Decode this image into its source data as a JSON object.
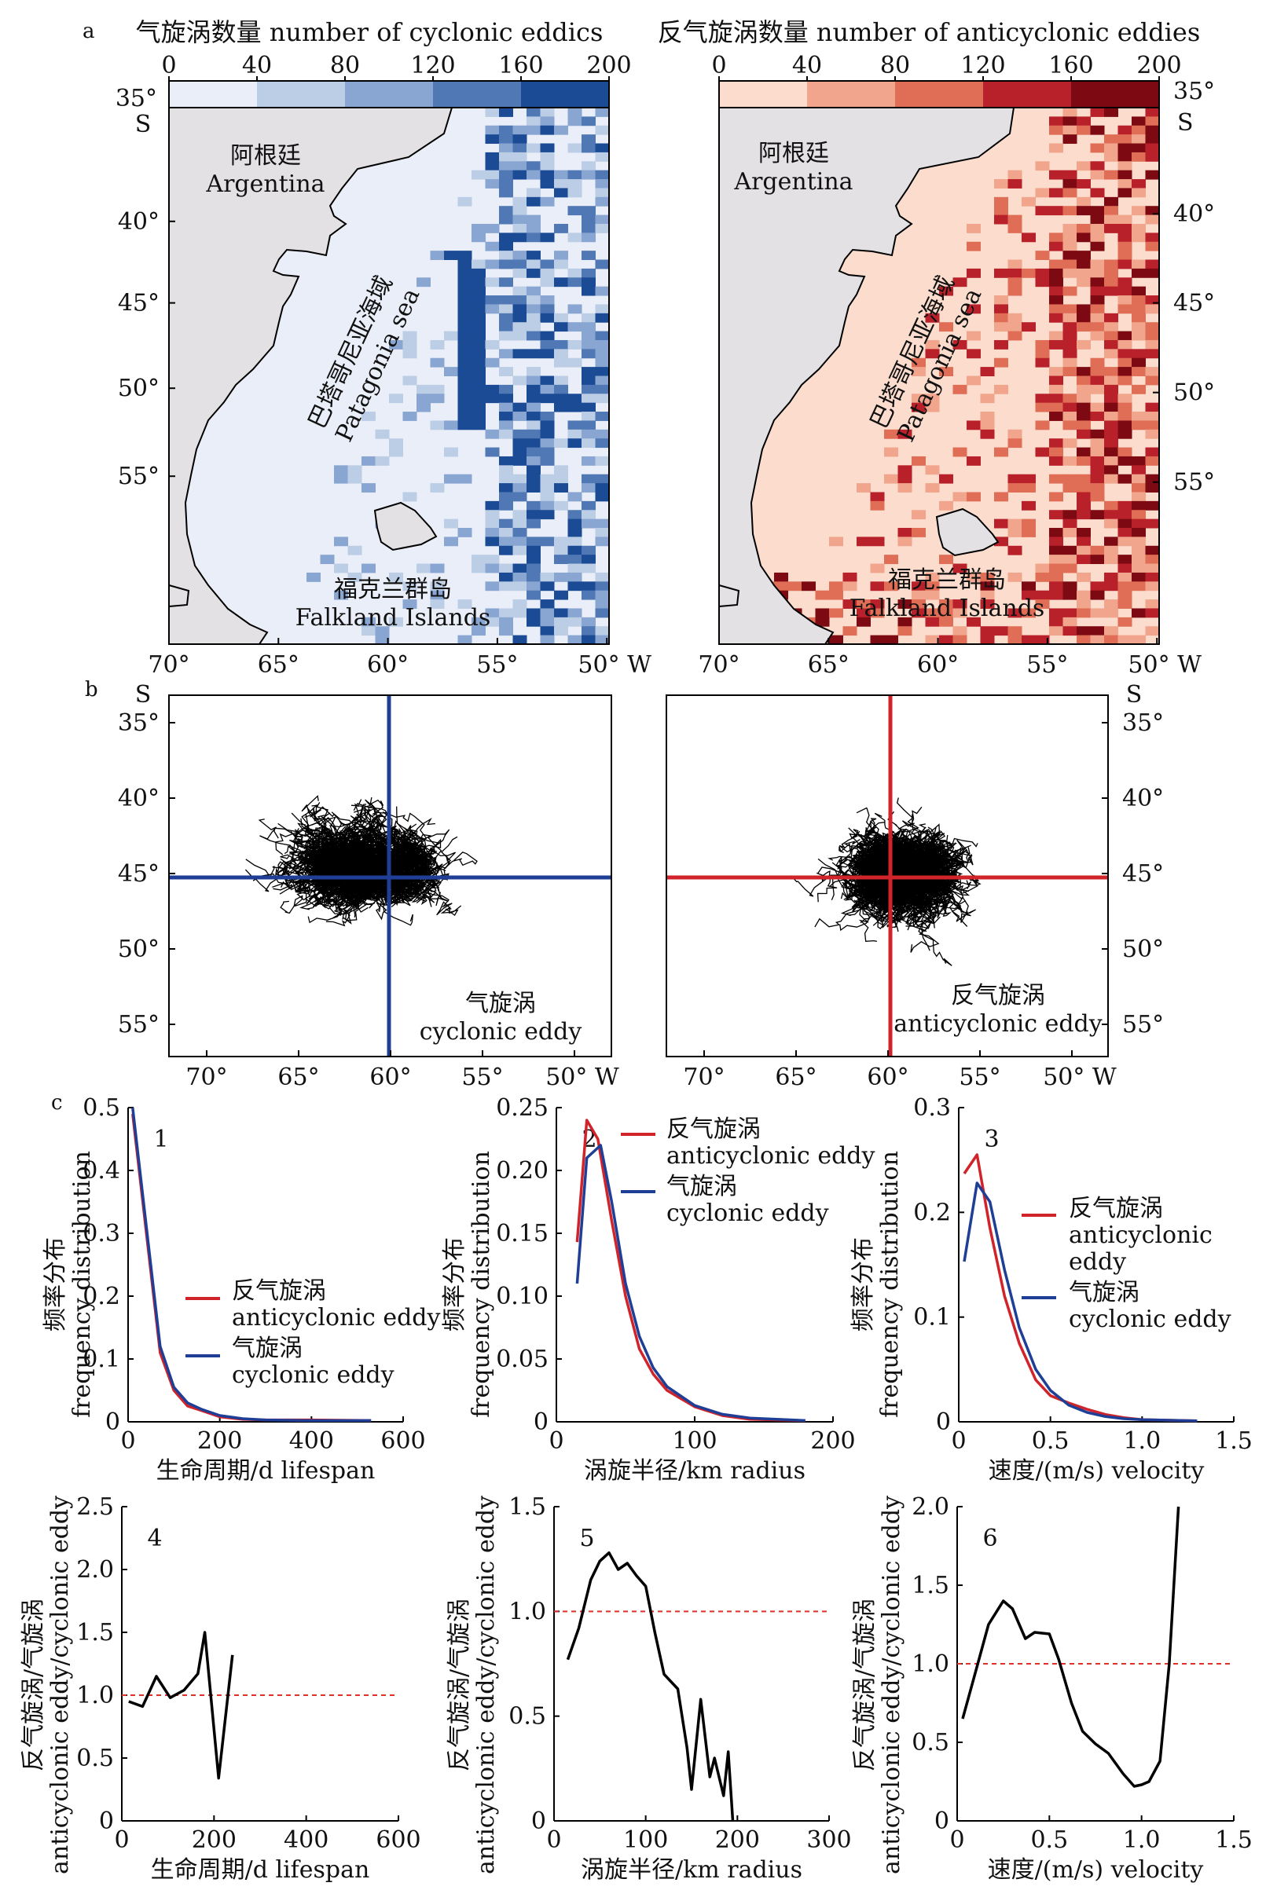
{
  "panel_letters": [
    "a",
    "b",
    "c"
  ],
  "colors": {
    "cyclonic": "#1f3f96",
    "anticyclonic": "#d1232a",
    "ratio": "#000000",
    "reference": "#e0302a",
    "land": "#e3e1e3",
    "cyc_scale": [
      "#eaeef8",
      "#bccde6",
      "#89a6d2",
      "#4f78b4",
      "#1b4b95"
    ],
    "anti_scale": [
      "#fbdccd",
      "#f1a58c",
      "#e06e56",
      "#b8202a",
      "#7d0a12"
    ],
    "map_lon_ticks": [
      "70°",
      "65°",
      "60°",
      "55°",
      "50° W"
    ],
    "map_lat_ticks": [
      "35°",
      "40°",
      "45°",
      "50°",
      "55°"
    ]
  },
  "panel_a": {
    "left": {
      "colorbar_title": "气旋涡数量 number of cyclonic eddics",
      "colorbar_ticks": [
        "0",
        "40",
        "80",
        "120",
        "160",
        "200"
      ],
      "lat_top": "35°",
      "lat_hemisphere": "S",
      "lat_ticks": [
        "40°",
        "45°",
        "50°",
        "55°"
      ],
      "lon_ticks": [
        "70°",
        "65°",
        "60°",
        "55°",
        "50° W"
      ],
      "country_zh": "阿根廷",
      "country_en": "Argentina",
      "sea_zh": "巴塔哥尼亚海域",
      "sea_en": "Patagonia sea",
      "islands_zh": "福克兰群岛",
      "islands_en": "Falkland Islands"
    },
    "right": {
      "colorbar_title": "反气旋涡数量 number of anticyclonic eddies",
      "colorbar_ticks": [
        "0",
        "40",
        "80",
        "120",
        "160",
        "200"
      ],
      "lat_top": "35°",
      "lat_hemisphere": "S",
      "lat_ticks": [
        "40°",
        "45°",
        "50°",
        "55°"
      ],
      "lon_ticks": [
        "70°",
        "65°",
        "60°",
        "55°",
        "50° W"
      ],
      "country_zh": "阿根廷",
      "country_en": "Argentina",
      "sea_zh": "巴塔哥尼亚海域",
      "sea_en": "Patagonia sea",
      "islands_zh": "福克兰群岛",
      "islands_en": "Falkland Islands"
    }
  },
  "panel_b": {
    "left": {
      "hemisphere": "S",
      "lat_ticks": [
        "35°",
        "40°",
        "45°",
        "50°",
        "55°"
      ],
      "lon_ticks": [
        "70°",
        "65°",
        "60°",
        "55°",
        "50° W"
      ],
      "label_zh": "气旋涡",
      "label_en": "cyclonic eddy"
    },
    "right": {
      "hemisphere": "S",
      "lat_ticks": [
        "35°",
        "40°",
        "45°",
        "50°",
        "55°"
      ],
      "lon_ticks": [
        "70°",
        "65°",
        "60°",
        "55°",
        "50° W"
      ],
      "label_zh": "反气旋涡",
      "label_en": "anticyclonic eddy"
    }
  },
  "legend": {
    "anti_zh": "反气旋涡",
    "anti_en": "anticyclonic eddy",
    "anti_en_l1": "anticyclonic",
    "anti_en_l2": "eddy",
    "cyc_zh": "气旋涡",
    "cyc_en": "cyclonic eddy"
  },
  "freq_ylabel_zh": "频率分布",
  "freq_ylabel_en": "frequency distribution",
  "ratio_ylabel_zh": "反气旋涡/气旋涡",
  "ratio_ylabel_en": "anticyclonic eddy/cyclonic eddy",
  "chart_data": [
    {
      "id": "c1",
      "type": "line",
      "panel_number": "1",
      "xlabel": "生命周期/d lifespan",
      "xlim": [
        0,
        600
      ],
      "ylim": [
        0,
        0.5
      ],
      "xticks": [
        0,
        200,
        400,
        600
      ],
      "yticks": [
        0,
        0.1,
        0.2,
        0.3,
        0.4,
        0.5
      ],
      "ytick_labels": [
        "0",
        "0.1",
        "0.2",
        "0.3",
        "0.4",
        "0.5"
      ],
      "series": [
        {
          "name": "anticyclonic eddy",
          "x": [
            10,
            40,
            70,
            100,
            130,
            160,
            200,
            250,
            300,
            400,
            530
          ],
          "y": [
            0.49,
            0.3,
            0.11,
            0.05,
            0.025,
            0.018,
            0.008,
            0.004,
            0.003,
            0.003,
            0.002
          ]
        },
        {
          "name": "cyclonic eddy",
          "x": [
            10,
            40,
            70,
            100,
            130,
            160,
            200,
            250,
            300,
            400,
            530
          ],
          "y": [
            0.5,
            0.31,
            0.12,
            0.055,
            0.03,
            0.02,
            0.01,
            0.005,
            0.003,
            0.002,
            0.002
          ]
        }
      ]
    },
    {
      "id": "c2",
      "type": "line",
      "panel_number": "2",
      "xlabel": "涡旋半径/km radius",
      "xlim": [
        0,
        200
      ],
      "ylim": [
        0,
        0.25
      ],
      "xticks": [
        0,
        100,
        200
      ],
      "yticks": [
        0,
        0.05,
        0.1,
        0.15,
        0.2,
        0.25
      ],
      "ytick_labels": [
        "0",
        "0.05",
        "0.10",
        "0.15",
        "0.20",
        "0.25"
      ],
      "series": [
        {
          "name": "anticyclonic eddy",
          "x": [
            15,
            22,
            30,
            40,
            50,
            60,
            70,
            80,
            100,
            120,
            140,
            180
          ],
          "y": [
            0.143,
            0.24,
            0.225,
            0.16,
            0.1,
            0.058,
            0.038,
            0.025,
            0.012,
            0.005,
            0.002,
            0.001
          ]
        },
        {
          "name": "cyclonic eddy",
          "x": [
            15,
            22,
            32,
            40,
            50,
            60,
            70,
            80,
            100,
            120,
            140,
            180
          ],
          "y": [
            0.11,
            0.21,
            0.22,
            0.175,
            0.11,
            0.068,
            0.043,
            0.028,
            0.013,
            0.006,
            0.003,
            0.001
          ]
        }
      ]
    },
    {
      "id": "c3",
      "type": "line",
      "panel_number": "3",
      "xlabel": "速度/(m/s) velocity",
      "xlim": [
        0,
        1.5
      ],
      "ylim": [
        0,
        0.3
      ],
      "xticks": [
        0,
        0.5,
        1.0,
        1.5
      ],
      "xtick_labels": [
        "0",
        "0.5",
        "1.0",
        "1.5"
      ],
      "yticks": [
        0,
        0.1,
        0.2,
        0.3
      ],
      "ytick_labels": [
        "0",
        "0.1",
        "0.2",
        "0.3"
      ],
      "series": [
        {
          "name": "anticyclonic eddy",
          "x": [
            0.03,
            0.1,
            0.17,
            0.25,
            0.33,
            0.42,
            0.5,
            0.6,
            0.7,
            0.8,
            0.9,
            1.0,
            1.3
          ],
          "y": [
            0.237,
            0.255,
            0.185,
            0.12,
            0.075,
            0.04,
            0.025,
            0.018,
            0.012,
            0.007,
            0.004,
            0.002,
            0.001
          ]
        },
        {
          "name": "cyclonic eddy",
          "x": [
            0.03,
            0.1,
            0.17,
            0.25,
            0.33,
            0.42,
            0.5,
            0.6,
            0.7,
            0.8,
            0.9,
            1.0,
            1.3
          ],
          "y": [
            0.153,
            0.228,
            0.21,
            0.145,
            0.09,
            0.05,
            0.03,
            0.016,
            0.009,
            0.005,
            0.003,
            0.002,
            0.001
          ]
        }
      ]
    },
    {
      "id": "c4",
      "type": "line",
      "panel_number": "4",
      "xlabel": "生命周期/d lifespan",
      "xlim": [
        0,
        600
      ],
      "ylim": [
        0,
        2.5
      ],
      "xticks": [
        0,
        200,
        400,
        600
      ],
      "yticks": [
        0,
        0.5,
        1.0,
        1.5,
        2.0,
        2.5
      ],
      "ytick_labels": [
        "0",
        "0.5",
        "1.0",
        "1.5",
        "2.0",
        "2.5"
      ],
      "reference": 1.0,
      "series": [
        {
          "name": "ratio",
          "x": [
            15,
            45,
            75,
            105,
            135,
            165,
            180,
            210,
            240
          ],
          "y": [
            0.95,
            0.91,
            1.15,
            0.98,
            1.04,
            1.17,
            1.5,
            0.34,
            1.32
          ]
        }
      ]
    },
    {
      "id": "c5",
      "type": "line",
      "panel_number": "5",
      "xlabel": "涡旋半径/km radius",
      "xlim": [
        0,
        300
      ],
      "ylim": [
        0,
        1.5
      ],
      "xticks": [
        0,
        100,
        200,
        300
      ],
      "yticks": [
        0,
        0.5,
        1.0,
        1.5
      ],
      "ytick_labels": [
        "0",
        "0.5",
        "1.0",
        "1.5"
      ],
      "reference": 1.0,
      "series": [
        {
          "name": "ratio",
          "x": [
            15,
            27,
            40,
            50,
            60,
            70,
            80,
            90,
            100,
            110,
            120,
            135,
            145,
            150,
            160,
            170,
            175,
            185,
            190,
            195
          ],
          "y": [
            0.77,
            0.92,
            1.15,
            1.24,
            1.28,
            1.2,
            1.23,
            1.17,
            1.12,
            0.9,
            0.7,
            0.63,
            0.35,
            0.15,
            0.58,
            0.21,
            0.3,
            0.12,
            0.33,
            0.0
          ]
        }
      ]
    },
    {
      "id": "c6",
      "type": "line",
      "panel_number": "6",
      "xlabel": "速度/(m/s) velocity",
      "xlim": [
        0,
        1.5
      ],
      "ylim": [
        0,
        2.0
      ],
      "xticks": [
        0,
        0.5,
        1.0,
        1.5
      ],
      "xtick_labels": [
        "0",
        "0.5",
        "1.0",
        "1.5"
      ],
      "yticks": [
        0,
        0.5,
        1.0,
        1.5,
        2.0
      ],
      "ytick_labels": [
        "0",
        "0.5",
        "1.0",
        "1.5",
        "2.0"
      ],
      "reference": 1.0,
      "series": [
        {
          "name": "ratio",
          "x": [
            0.03,
            0.1,
            0.17,
            0.25,
            0.3,
            0.37,
            0.42,
            0.5,
            0.55,
            0.62,
            0.68,
            0.75,
            0.82,
            0.9,
            0.96,
            1.0,
            1.04,
            1.1,
            1.15,
            1.2
          ],
          "y": [
            0.65,
            0.95,
            1.25,
            1.4,
            1.35,
            1.16,
            1.2,
            1.19,
            1.03,
            0.75,
            0.57,
            0.49,
            0.43,
            0.3,
            0.22,
            0.23,
            0.25,
            0.38,
            1.0,
            2.0
          ]
        }
      ]
    }
  ]
}
